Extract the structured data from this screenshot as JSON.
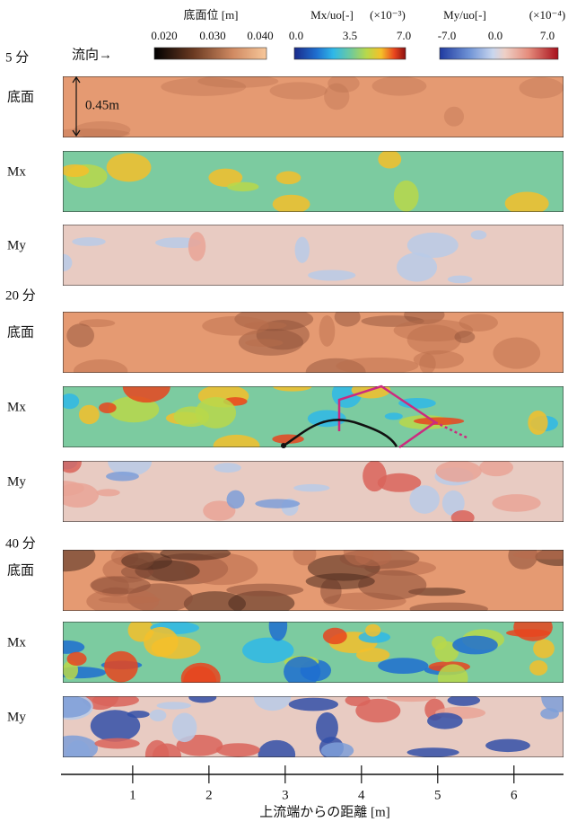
{
  "header": {
    "colorbars": [
      {
        "label": "底面位 [m]",
        "ticks": [
          "0.020",
          "0.030",
          "0.040"
        ]
      },
      {
        "label": "Mx/uo[-]",
        "unit": "(×10⁻³)",
        "ticks": [
          "0.0",
          "3.5",
          "7.0"
        ]
      },
      {
        "label": "My/uo[-]",
        "unit": "(×10⁻⁴)",
        "ticks": [
          "-7.0",
          "0.0",
          "7.0"
        ]
      }
    ],
    "flow": "流向→",
    "scale": "0.45m"
  },
  "groups": [
    {
      "time": "5 分",
      "rows": [
        "底面",
        "Mx",
        "My"
      ]
    },
    {
      "time": "20 分",
      "rows": [
        "底面",
        "Mx",
        "My"
      ]
    },
    {
      "time": "40 分",
      "rows": [
        "底面",
        "Mx",
        "My"
      ]
    }
  ],
  "axis": {
    "xlim": [
      0.06,
      6.65
    ],
    "xticks": [
      1,
      2,
      3,
      4,
      5,
      6
    ],
    "label": "上流端からの距離 [m]"
  }
}
